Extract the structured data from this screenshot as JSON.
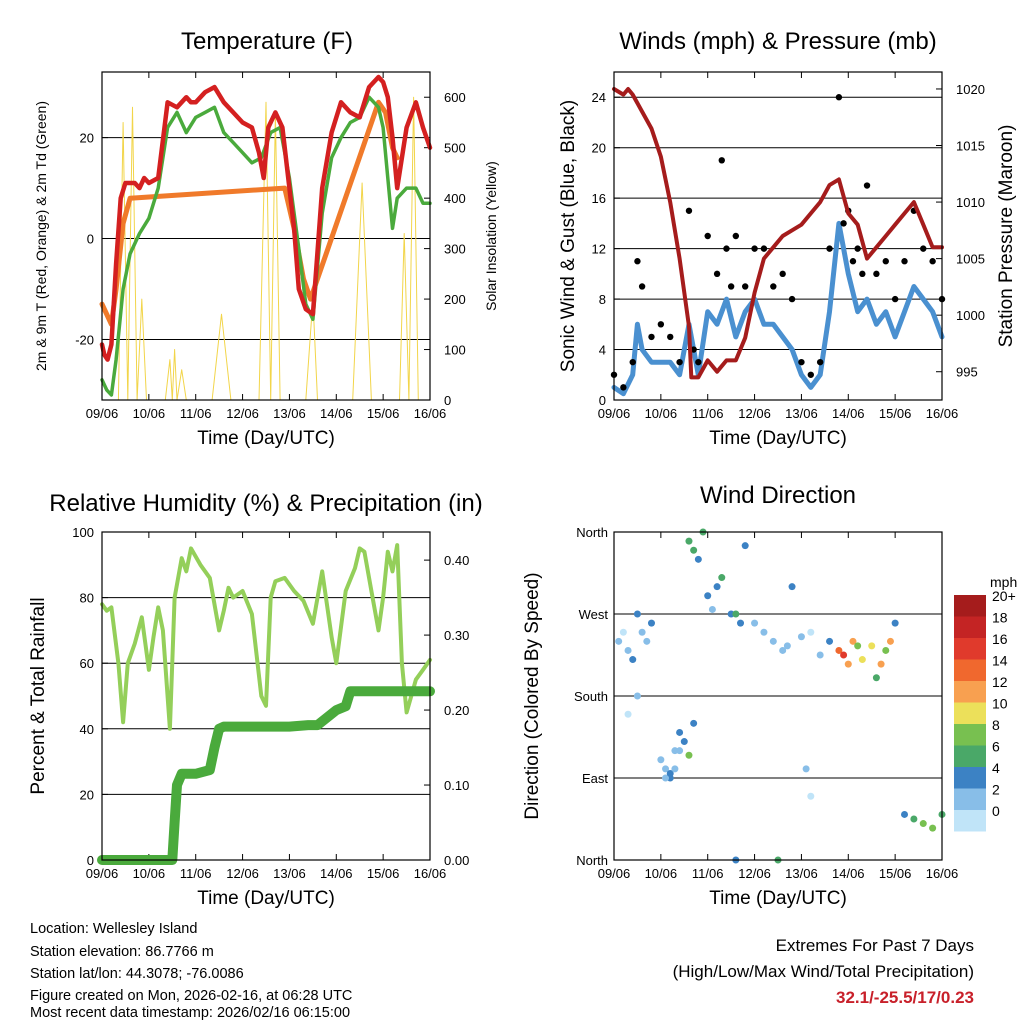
{
  "chart_data": [
    {
      "type": "line",
      "title": "Temperature (F)",
      "xlabel": "Time (Day/UTC)",
      "ylabel": "2m & 9m T (Red, Orange) & 2m Td (Green)",
      "y2label": "Solar Insolation (Yellow)",
      "x_ticks": [
        "09/06",
        "10/06",
        "11/06",
        "12/06",
        "13/06",
        "14/06",
        "15/06",
        "16/06"
      ],
      "ylim": [
        -32,
        33
      ],
      "y_ticks": [
        -20,
        0,
        20
      ],
      "y2lim": [
        0,
        650
      ],
      "y2_ticks": [
        0,
        100,
        200,
        300,
        400,
        500,
        600
      ],
      "grid": true,
      "series": [
        {
          "name": "2m T",
          "color": "#d42020",
          "x": [
            0,
            0.05,
            0.12,
            0.2,
            0.3,
            0.4,
            0.5,
            0.6,
            0.7,
            0.8,
            0.9,
            1.0,
            1.2,
            1.4,
            1.6,
            1.8,
            1.9,
            2.0,
            2.2,
            2.4,
            2.6,
            2.8,
            3.0,
            3.2,
            3.35,
            3.45,
            3.55,
            3.7,
            3.85,
            4.0,
            4.1,
            4.2,
            4.35,
            4.5,
            4.7,
            4.9,
            5.1,
            5.3,
            5.5,
            5.7,
            5.9,
            6.0,
            6.1,
            6.2,
            6.3,
            6.5,
            6.7,
            6.85,
            7.0
          ],
          "values": [
            -21,
            -23,
            -24,
            -21,
            -5,
            8,
            11,
            11,
            11,
            10,
            12,
            11,
            12,
            27,
            26,
            28,
            27,
            27,
            29,
            30,
            27,
            25,
            23,
            22,
            17,
            12,
            22,
            25,
            22,
            10,
            2,
            -10,
            -14,
            -15,
            10,
            21,
            27,
            25,
            24,
            30,
            32,
            31,
            28,
            20,
            10,
            22,
            27,
            22,
            18
          ]
        },
        {
          "name": "9m T",
          "color": "#f07a2a",
          "x": [
            0,
            0.1,
            0.2,
            0.3,
            0.45,
            0.6,
            3.9,
            4.1,
            4.3,
            4.45,
            5.9,
            6.05,
            6.2,
            6.3
          ],
          "values": [
            -13,
            -15,
            -17,
            -10,
            3,
            8,
            10,
            2,
            -8,
            -12,
            27,
            25,
            18,
            16
          ]
        },
        {
          "name": "2m Td",
          "color": "#4aaa3c",
          "x": [
            0,
            0.1,
            0.2,
            0.3,
            0.45,
            0.6,
            0.8,
            1.0,
            1.2,
            1.4,
            1.6,
            1.8,
            2.0,
            2.2,
            2.4,
            2.6,
            2.8,
            3.0,
            3.2,
            3.4,
            3.6,
            3.8,
            4.0,
            4.2,
            4.35,
            4.5,
            4.7,
            4.9,
            5.1,
            5.3,
            5.5,
            5.7,
            5.9,
            6.0,
            6.1,
            6.2,
            6.3,
            6.5,
            6.7,
            6.85,
            7.0
          ],
          "values": [
            -28,
            -30,
            -31,
            -24,
            -10,
            -3,
            1,
            4,
            10,
            22,
            25,
            21,
            24,
            25,
            26,
            21,
            19,
            17,
            15,
            16,
            21,
            22,
            12,
            -2,
            -13,
            -16,
            5,
            16,
            20,
            23,
            24,
            28,
            26,
            22,
            12,
            2,
            8,
            10,
            10,
            7,
            7
          ]
        },
        {
          "name": "Solar Insolation",
          "axis": "y2",
          "color": "#f2d54a",
          "x": [
            0.35,
            0.45,
            0.55,
            0.65,
            0.75,
            0.85,
            0.95,
            1.35,
            1.45,
            1.5,
            1.55,
            1.6,
            1.7,
            1.8,
            2.35,
            2.55,
            2.75,
            3.35,
            3.5,
            3.6,
            3.7,
            3.8,
            4.35,
            4.5,
            4.6,
            4.7,
            5.35,
            5.55,
            5.75,
            5.95,
            6.15,
            6.35,
            6.45,
            6.55,
            6.65,
            6.75,
            6.85
          ],
          "values": [
            0,
            550,
            0,
            580,
            0,
            200,
            0,
            0,
            80,
            0,
            100,
            0,
            60,
            0,
            0,
            170,
            0,
            0,
            590,
            0,
            570,
            0,
            0,
            200,
            0,
            0,
            0,
            430,
            0,
            0,
            0,
            0,
            330,
            0,
            600,
            0,
            0
          ]
        }
      ]
    },
    {
      "type": "scatter",
      "title": "Winds (mph) & Pressure (mb)",
      "xlabel": "Time (Day/UTC)",
      "ylabel": "Sonic Wind & Gust (Blue, Black)",
      "y2label": "Station Pressure (Maroon)",
      "x_ticks": [
        "09/06",
        "10/06",
        "11/06",
        "12/06",
        "13/06",
        "14/06",
        "15/06",
        "16/06"
      ],
      "ylim": [
        0,
        26
      ],
      "y_ticks": [
        0,
        4,
        8,
        12,
        16,
        20,
        24
      ],
      "y2lim": [
        992.5,
        1021.5
      ],
      "y2_ticks": [
        995,
        1000,
        1005,
        1010,
        1015,
        1020
      ],
      "grid": true,
      "series": [
        {
          "name": "Gust",
          "color": "#000000",
          "x": [
            0.0,
            0.2,
            0.4,
            0.5,
            0.6,
            0.8,
            1.0,
            1.2,
            1.4,
            1.6,
            1.7,
            1.8,
            2.0,
            2.2,
            2.3,
            2.4,
            2.5,
            2.6,
            2.8,
            3.0,
            3.2,
            3.4,
            3.6,
            3.8,
            4.0,
            4.2,
            4.4,
            4.6,
            4.8,
            4.9,
            5.0,
            5.1,
            5.2,
            5.3,
            5.4,
            5.6,
            5.8,
            6.0,
            6.2,
            6.4,
            6.6,
            6.8,
            7.0
          ],
          "values": [
            2,
            1,
            3,
            11,
            9,
            5,
            6,
            5,
            3,
            15,
            4,
            3,
            13,
            10,
            19,
            12,
            9,
            13,
            9,
            12,
            12,
            9,
            10,
            8,
            3,
            2,
            3,
            12,
            24,
            14,
            15,
            11,
            12,
            10,
            17,
            10,
            11,
            8,
            11,
            15,
            12,
            11,
            8
          ]
        },
        {
          "name": "Sonic Wind",
          "color": "#4a90d0",
          "x": [
            0.0,
            0.2,
            0.4,
            0.5,
            0.6,
            0.8,
            1.0,
            1.2,
            1.4,
            1.6,
            1.8,
            2.0,
            2.2,
            2.4,
            2.6,
            2.8,
            3.0,
            3.2,
            3.4,
            3.6,
            3.8,
            4.0,
            4.2,
            4.4,
            4.6,
            4.8,
            5.0,
            5.2,
            5.4,
            5.6,
            5.8,
            6.0,
            6.2,
            6.4,
            6.6,
            6.8,
            7.0
          ],
          "values": [
            1,
            0.5,
            2,
            6,
            4,
            3,
            3,
            3,
            2,
            6,
            2,
            7,
            6,
            8,
            5,
            7,
            8,
            6,
            6,
            5,
            4,
            2,
            1,
            2,
            7,
            14,
            10,
            7,
            8,
            6,
            7,
            5,
            7,
            9,
            8,
            7,
            5
          ]
        },
        {
          "name": "Station Pressure",
          "axis": "y2",
          "color": "#a51c1c",
          "x": [
            0,
            0.2,
            0.3,
            0.4,
            0.6,
            0.8,
            1.0,
            1.2,
            1.4,
            1.6,
            1.65,
            1.8,
            2.0,
            2.2,
            2.4,
            2.6,
            2.8,
            3.0,
            3.2,
            3.4,
            3.6,
            3.8,
            4.0,
            4.2,
            4.4,
            4.6,
            4.8,
            5.0,
            5.2,
            5.4,
            5.6,
            5.8,
            6.0,
            6.2,
            6.4,
            6.6,
            6.8,
            7.0
          ],
          "values": [
            1020,
            1019.5,
            1020,
            1019.5,
            1018,
            1016.5,
            1014,
            1010,
            1005,
            999,
            994.5,
            994.5,
            996,
            995,
            996,
            996,
            998,
            1002,
            1005,
            1006,
            1007,
            1007.5,
            1008,
            1009,
            1010,
            1011.5,
            1012,
            1009,
            1008,
            1005,
            1006,
            1007,
            1008,
            1009,
            1010,
            1008,
            1006,
            1006
          ]
        }
      ]
    },
    {
      "type": "line",
      "title": "Relative Humidity (%) & Precipitation (in)",
      "xlabel": "Time (Day/UTC)",
      "ylabel": "Percent & Total Rainfall",
      "x_ticks": [
        "09/06",
        "10/06",
        "11/06",
        "12/06",
        "13/06",
        "14/06",
        "15/06",
        "16/06"
      ],
      "ylim": [
        0,
        100
      ],
      "y_ticks": [
        0,
        20,
        40,
        60,
        80,
        100
      ],
      "y2lim": [
        0,
        0.4375
      ],
      "y2_ticks": [
        "0.00",
        "0.10",
        "0.20",
        "0.30",
        "0.40"
      ],
      "grid": true,
      "series": [
        {
          "name": "Relative Humidity",
          "color": "#94cf5a",
          "x": [
            0,
            0.1,
            0.2,
            0.35,
            0.45,
            0.55,
            0.7,
            0.85,
            1.0,
            1.1,
            1.2,
            1.3,
            1.45,
            1.55,
            1.7,
            1.8,
            1.9,
            2.1,
            2.3,
            2.5,
            2.6,
            2.7,
            2.8,
            3.0,
            3.2,
            3.4,
            3.5,
            3.6,
            3.7,
            3.9,
            4.1,
            4.3,
            4.5,
            4.7,
            4.9,
            5.0,
            5.2,
            5.4,
            5.5,
            5.6,
            5.75,
            5.9,
            6.0,
            6.1,
            6.2,
            6.3,
            6.4,
            6.5,
            6.6,
            6.7,
            6.85,
            7.0
          ],
          "values": [
            78,
            76,
            77,
            60,
            42,
            60,
            66,
            74,
            58,
            68,
            77,
            70,
            40,
            80,
            92,
            88,
            95,
            90,
            86,
            70,
            76,
            83,
            80,
            82,
            75,
            50,
            47,
            80,
            85,
            86,
            82,
            79,
            72,
            88,
            68,
            60,
            82,
            89,
            95,
            94,
            82,
            70,
            80,
            94,
            88,
            96,
            60,
            45,
            50,
            55,
            58,
            61
          ]
        },
        {
          "name": "Total Precipitation",
          "axis": "y2",
          "color": "#4aaa3c",
          "x": [
            0,
            1.5,
            1.55,
            1.6,
            1.7,
            1.75,
            2.0,
            2.3,
            2.4,
            2.5,
            2.6,
            3.0,
            3.5,
            4.0,
            4.4,
            4.5,
            4.6,
            5.0,
            5.2,
            5.3,
            5.4,
            6.0,
            6.5,
            7.0
          ],
          "values": [
            0,
            0,
            0.05,
            0.1,
            0.115,
            0.115,
            0.115,
            0.12,
            0.15,
            0.175,
            0.178,
            0.178,
            0.178,
            0.178,
            0.18,
            0.18,
            0.18,
            0.2,
            0.205,
            0.225,
            0.225,
            0.225,
            0.225,
            0.225
          ]
        }
      ]
    },
    {
      "type": "scatter",
      "title": "Wind Direction",
      "xlabel": "Time (Day/UTC)",
      "ylabel": "Direction (Colored By Speed)",
      "x_ticks": [
        "09/06",
        "10/06",
        "11/06",
        "12/06",
        "13/06",
        "14/06",
        "15/06",
        "16/06"
      ],
      "y_ticks": [
        "North",
        "East",
        "South",
        "West",
        "North"
      ],
      "ylim": [
        0,
        360
      ],
      "grid": true,
      "colorbar": {
        "title": "mph",
        "labels": [
          "20+",
          "18",
          "16",
          "14",
          "12",
          "10",
          "8",
          "6",
          "4",
          "2",
          "0"
        ],
        "colors": [
          "#a51c1c",
          "#c42424",
          "#e03a2c",
          "#f0682e",
          "#f8a050",
          "#ece05a",
          "#78c050",
          "#4aa868",
          "#3c82c4",
          "#88bee8",
          "#c0e4f8"
        ]
      },
      "x": [
        0.1,
        0.2,
        0.3,
        0.4,
        0.5,
        0.6,
        0.7,
        0.8,
        1.0,
        1.1,
        1.2,
        1.3,
        1.4,
        1.6,
        1.7,
        1.8,
        1.9,
        2.0,
        2.1,
        2.2,
        2.3,
        2.5,
        2.6,
        2.7,
        2.8,
        3.0,
        3.2,
        3.4,
        3.6,
        3.7,
        3.8,
        4.0,
        4.2,
        4.4,
        4.6,
        4.8,
        4.9,
        5.0,
        5.1,
        5.2,
        5.3,
        5.5,
        5.6,
        5.7,
        5.8,
        5.9,
        6.0,
        6.2,
        6.4,
        6.6,
        6.8,
        7.0,
        1.1,
        1.2,
        1.3,
        1.4,
        1.5,
        1.6,
        1.7,
        2.6,
        3.5,
        0.3,
        0.5,
        4.2,
        4.1
      ],
      "y": [
        240,
        250,
        230,
        220,
        270,
        250,
        240,
        260,
        110,
        100,
        90,
        120,
        140,
        350,
        340,
        330,
        360,
        290,
        275,
        300,
        310,
        270,
        270,
        260,
        345,
        260,
        250,
        240,
        230,
        235,
        300,
        245,
        250,
        225,
        240,
        230,
        225,
        215,
        240,
        235,
        220,
        235,
        200,
        215,
        230,
        240,
        260,
        50,
        45,
        40,
        35,
        50,
        90,
        95,
        100,
        120,
        130,
        115,
        150,
        0,
        0,
        160,
        180,
        70,
        100
      ],
      "speeds": [
        2,
        1,
        3,
        5,
        4,
        3,
        2,
        5,
        2,
        3,
        4,
        3,
        5,
        6,
        6,
        5,
        7,
        4,
        3,
        5,
        7,
        5,
        6,
        5,
        4,
        2,
        3,
        2,
        3,
        2,
        5,
        3,
        1,
        2,
        5,
        14,
        16,
        13,
        12,
        9,
        11,
        10,
        7,
        12,
        8,
        13,
        4,
        5,
        7,
        9,
        8,
        6,
        3,
        4,
        2,
        3,
        5,
        8,
        4,
        5,
        6,
        1,
        2,
        1,
        2
      ]
    }
  ],
  "footer": {
    "location": "Location: Wellesley Island",
    "elevation": "Station elevation: 86.7766 m",
    "latlon": "Station lat/lon: 44.3078; -76.0086",
    "created": "Figure created on Mon, 2026-02-16, at 06:28 UTC",
    "recent": "Most recent data timestamp: 2026/02/16 06:15:00"
  },
  "extremes": {
    "line1": "Extremes For Past 7 Days",
    "line2": "(High/Low/Max Wind/Total Precipitation)",
    "values": "32.1/-25.5/17/0.23",
    "value_color": "#c8202a"
  }
}
